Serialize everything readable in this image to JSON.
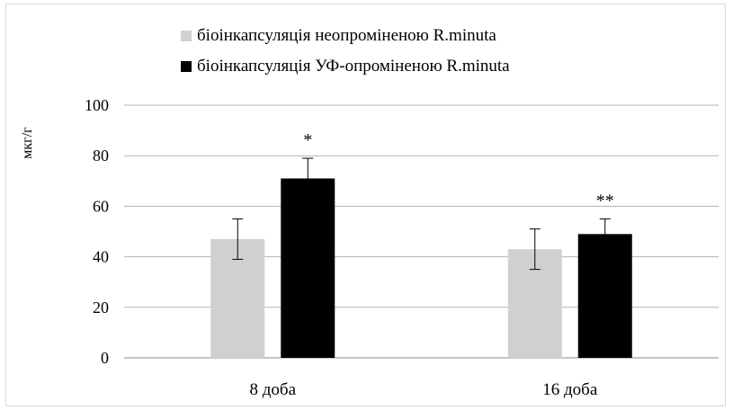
{
  "chart_data": {
    "type": "bar",
    "title": "",
    "xlabel": "",
    "ylabel": "мкг/г",
    "ylim": [
      0,
      100
    ],
    "yticks": [
      0,
      20,
      40,
      60,
      80,
      100
    ],
    "grid": true,
    "legend_position": "top",
    "categories": [
      "8 доба",
      "16 доба"
    ],
    "series": [
      {
        "name": "біоінкапсуляція неопроміненою R.minuta",
        "color": "#d0d0d0",
        "values": [
          47,
          43
        ],
        "error": [
          8,
          8
        ],
        "annotations": [
          "",
          ""
        ]
      },
      {
        "name": "біоінкапсуляція УФ-опроміненою R.minuta",
        "color": "#000000",
        "values": [
          71,
          49
        ],
        "error": [
          8,
          6
        ],
        "annotations": [
          "*",
          "**"
        ]
      }
    ]
  }
}
